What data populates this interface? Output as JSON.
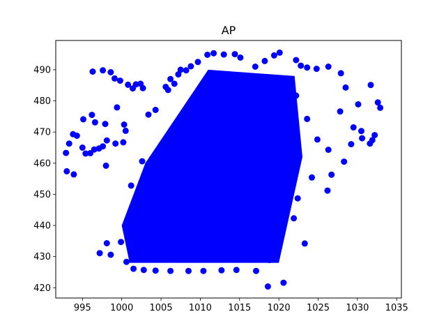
{
  "chart_data": {
    "type": "scatter",
    "title": "AP",
    "xlabel": "",
    "ylabel": "",
    "xlim": [
      991.6,
      1035.6
    ],
    "ylim": [
      416.7,
      499.4
    ],
    "x_ticks": [
      995,
      1000,
      1005,
      1010,
      1015,
      1020,
      1025,
      1030,
      1035
    ],
    "y_ticks": [
      420,
      430,
      440,
      450,
      460,
      470,
      480,
      490
    ],
    "grid": false,
    "legend": "none",
    "marker_color": "#0000ff",
    "series": [
      {
        "points": [
          [
            992.9,
            463.3
          ],
          [
            993.0,
            457.4
          ],
          [
            993.3,
            466.3
          ],
          [
            993.8,
            469.3
          ],
          [
            993.9,
            456.4
          ],
          [
            994.3,
            468.8
          ],
          [
            995.0,
            465.0
          ],
          [
            995.1,
            474.1
          ],
          [
            995.4,
            463.1
          ],
          [
            996.0,
            463.2
          ],
          [
            996.2,
            475.5
          ],
          [
            996.3,
            489.4
          ],
          [
            996.5,
            464.4
          ],
          [
            996.6,
            473.1
          ],
          [
            997.1,
            464.7
          ],
          [
            997.6,
            465.4
          ],
          [
            997.6,
            489.8
          ],
          [
            997.9,
            472.6
          ],
          [
            998.0,
            459.2
          ],
          [
            998.1,
            467.3
          ],
          [
            998.6,
            489.2
          ],
          [
            999.1,
            487.2
          ],
          [
            999.2,
            466.3
          ],
          [
            999.4,
            477.9
          ],
          [
            999.8,
            486.5
          ],
          [
            1000.2,
            466.7
          ],
          [
            1000.3,
            472.4
          ],
          [
            1000.5,
            470.4
          ],
          [
            1000.8,
            485.2
          ],
          [
            1001.4,
            484.0
          ],
          [
            1001.8,
            485.3
          ],
          [
            1002.4,
            485.5
          ],
          [
            1002.7,
            484.1
          ],
          [
            1003.4,
            475.6
          ],
          [
            1004.3,
            477.1
          ],
          [
            1005.6,
            484.5
          ],
          [
            1005.9,
            483.5
          ],
          [
            1006.2,
            487.0
          ],
          [
            1006.7,
            485.5
          ],
          [
            1007.2,
            488.5
          ],
          [
            997.2,
            431.1
          ],
          [
            998.1,
            434.3
          ],
          [
            998.6,
            430.6
          ],
          [
            999.9,
            434.7
          ],
          [
            1000.6,
            428.3
          ],
          [
            1001.5,
            426.1
          ],
          [
            1002.8,
            425.7
          ],
          [
            1004.3,
            425.5
          ],
          [
            1006.2,
            425.4
          ],
          [
            1008.5,
            425.4
          ],
          [
            1010.4,
            425.4
          ],
          [
            1012.7,
            425.6
          ],
          [
            1014.6,
            425.7
          ],
          [
            1017.1,
            425.4
          ],
          [
            1018.6,
            420.4
          ],
          [
            1018.8,
            428.9
          ],
          [
            1020.6,
            421.6
          ],
          [
            1021.9,
            442.3
          ],
          [
            1023.3,
            434.2
          ],
          [
            1020.1,
            437.1
          ],
          [
            1022.4,
            448.7
          ],
          [
            1024.2,
            455.4
          ],
          [
            1026.7,
            456.3
          ],
          [
            1026.2,
            451.2
          ],
          [
            1028.3,
            460.5
          ],
          [
            1029.5,
            471.5
          ],
          [
            1030.5,
            470.3
          ],
          [
            1031.6,
            466.3
          ],
          [
            1032.2,
            469.0
          ],
          [
            1032.9,
            477.8
          ],
          [
            1032.6,
            479.5
          ],
          [
            1031.7,
            485.1
          ],
          [
            1030.1,
            478.9
          ],
          [
            1028.5,
            484.3
          ],
          [
            1027.9,
            488.9
          ],
          [
            1026.3,
            491.0
          ],
          [
            1024.8,
            490.3
          ],
          [
            1023.6,
            490.7
          ],
          [
            1022.8,
            491.3
          ],
          [
            1022.2,
            493.1
          ],
          [
            1020.1,
            495.5
          ],
          [
            1019.4,
            494.6
          ],
          [
            1018.2,
            492.8
          ],
          [
            1017.0,
            491.0
          ],
          [
            1015.1,
            493.9
          ],
          [
            1014.4,
            495.0
          ],
          [
            1013.0,
            494.9
          ],
          [
            1011.7,
            495.3
          ],
          [
            1010.9,
            494.8
          ],
          [
            1009.7,
            492.5
          ],
          [
            1008.8,
            491.1
          ],
          [
            1008.2,
            489.8
          ],
          [
            1007.5,
            490.0
          ],
          [
            1011.2,
            487.9
          ],
          [
            1013.5,
            488.6
          ],
          [
            1001.2,
            452.8
          ],
          [
            1002.6,
            460.6
          ],
          [
            1001.9,
            442.6
          ],
          [
            1003.2,
            448.2
          ],
          [
            1004.1,
            455.3
          ],
          [
            1006.3,
            458.8
          ],
          [
            1005.5,
            447.1
          ],
          [
            1007.2,
            467.9
          ],
          [
            1008.8,
            474.8
          ],
          [
            1009.7,
            461.8
          ],
          [
            1011.2,
            471.8
          ],
          [
            1012.7,
            481.3
          ],
          [
            1014.2,
            476.1
          ],
          [
            1015.8,
            484.2
          ],
          [
            1017.6,
            482.8
          ],
          [
            1019.2,
            486.5
          ],
          [
            1020.7,
            478.7
          ],
          [
            1022.2,
            481.7
          ],
          [
            1023.6,
            474.2
          ],
          [
            1024.9,
            467.6
          ],
          [
            1026.3,
            464.3
          ],
          [
            1027.8,
            476.6
          ],
          [
            1029.2,
            466.1
          ],
          [
            1030.6,
            468.0
          ],
          [
            1031.9,
            467.4
          ],
          [
            1003.0,
            436.2
          ],
          [
            1004.5,
            440.3
          ],
          [
            1005.8,
            433.3
          ],
          [
            1007.1,
            444.6
          ],
          [
            1008.5,
            437.2
          ],
          [
            1009.9,
            450.6
          ],
          [
            1011.3,
            442.7
          ],
          [
            1012.7,
            455.2
          ],
          [
            1014.1,
            446.8
          ],
          [
            1015.5,
            460.9
          ],
          [
            1016.9,
            452.3
          ],
          [
            1018.3,
            466.2
          ],
          [
            1019.7,
            458.4
          ],
          [
            1021.1,
            470.6
          ],
          [
            1022.5,
            463.9
          ],
          [
            1010.6,
            435.2
          ],
          [
            1012.2,
            431.7
          ],
          [
            1013.8,
            438.3
          ],
          [
            1015.4,
            441.2
          ],
          [
            1017.1,
            446.6
          ],
          [
            1018.6,
            444.3
          ],
          [
            1019.9,
            450.8
          ],
          [
            1021.0,
            455.7
          ],
          [
            1016.3,
            470.5
          ],
          [
            1013.1,
            465.2
          ]
        ]
      }
    ]
  }
}
